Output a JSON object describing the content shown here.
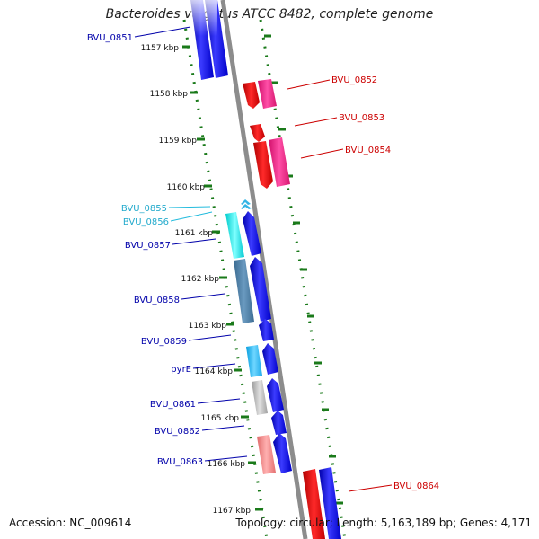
{
  "title": "Bacteroides vulgatus ATCC 8482, complete genome",
  "footer": {
    "accession": "Accession: NC_009614",
    "summary": "Topology: circular; Length: 5,163,189 bp; Genes: 4,171"
  },
  "colors": {
    "tick": "#1a7a1a",
    "backbone": "#8c8c8c",
    "forward_label": "#cc0000",
    "reverse_label": "#0000aa",
    "cyan_label": "#22aacc"
  },
  "ticks": [
    "1157 kbp",
    "1158 kbp",
    "1159 kbp",
    "1160 kbp",
    "1161 kbp",
    "1162 kbp",
    "1163 kbp",
    "1164 kbp",
    "1165 kbp",
    "1166 kbp",
    "1167 kbp"
  ],
  "labels": {
    "reverse": [
      "BVU_0851",
      "BVU_0857",
      "BVU_0858",
      "BVU_0859",
      "pyrE",
      "BVU_0861",
      "BVU_0862",
      "BVU_0863"
    ],
    "cyan": [
      "BVU_0855",
      "BVU_0856"
    ],
    "forward": [
      "BVU_0852",
      "BVU_0853",
      "BVU_0854",
      "BVU_0864"
    ]
  }
}
